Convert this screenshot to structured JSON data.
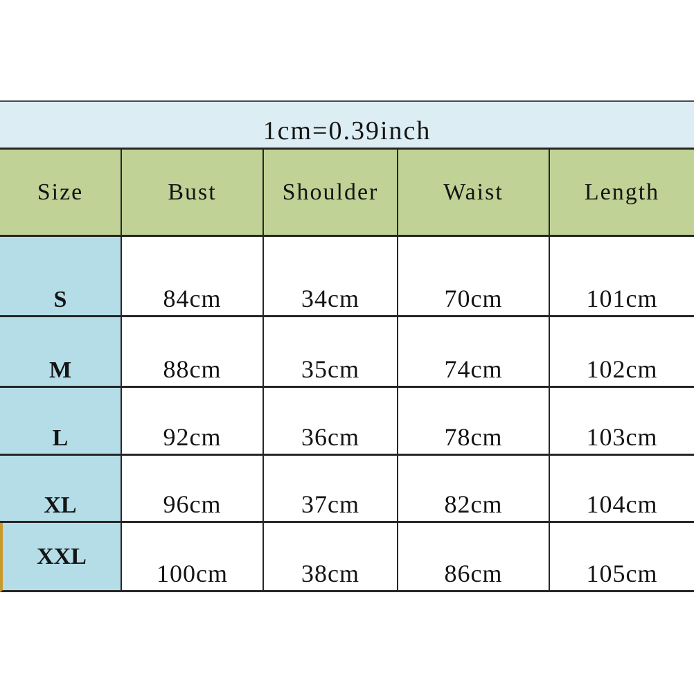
{
  "conversion_note": "1cm=0.39inch",
  "table": {
    "columns": [
      "Size",
      "Bust",
      "Shoulder",
      "Waist",
      "Length"
    ],
    "rows": [
      {
        "size": "S",
        "values": [
          "84cm",
          "34cm",
          "70cm",
          "101cm"
        ]
      },
      {
        "size": "M",
        "values": [
          "88cm",
          "35cm",
          "74cm",
          "102cm"
        ]
      },
      {
        "size": "L",
        "values": [
          "92cm",
          "36cm",
          "78cm",
          "103cm"
        ]
      },
      {
        "size": "XL",
        "values": [
          "96cm",
          "37cm",
          "82cm",
          "104cm"
        ]
      },
      {
        "size": "XXL",
        "values": [
          "100cm",
          "38cm",
          "86cm",
          "105cm"
        ]
      }
    ]
  },
  "colors": {
    "conversion_band_bg": "#dcedf3",
    "column_header_bg": "#c0d295",
    "size_column_bg": "#b4dde8",
    "data_cell_bg": "#ffffff",
    "grid_line": "#262626",
    "xxl_highlight_edge": "#c79a2a",
    "text": "#141414"
  },
  "chart_data": {
    "type": "table",
    "title": "1cm=0.39inch",
    "columns": [
      "Size",
      "Bust",
      "Shoulder",
      "Waist",
      "Length"
    ],
    "rows": [
      [
        "S",
        "84cm",
        "34cm",
        "70cm",
        "101cm"
      ],
      [
        "M",
        "88cm",
        "35cm",
        "74cm",
        "102cm"
      ],
      [
        "L",
        "92cm",
        "36cm",
        "78cm",
        "103cm"
      ],
      [
        "XL",
        "96cm",
        "37cm",
        "82cm",
        "104cm"
      ],
      [
        "XXL",
        "100cm",
        "38cm",
        "86cm",
        "105cm"
      ]
    ],
    "units": "cm",
    "notes": "Sizes S-XL bottom-aligned labels; XXL row carries a gold highlight edge at far left"
  }
}
